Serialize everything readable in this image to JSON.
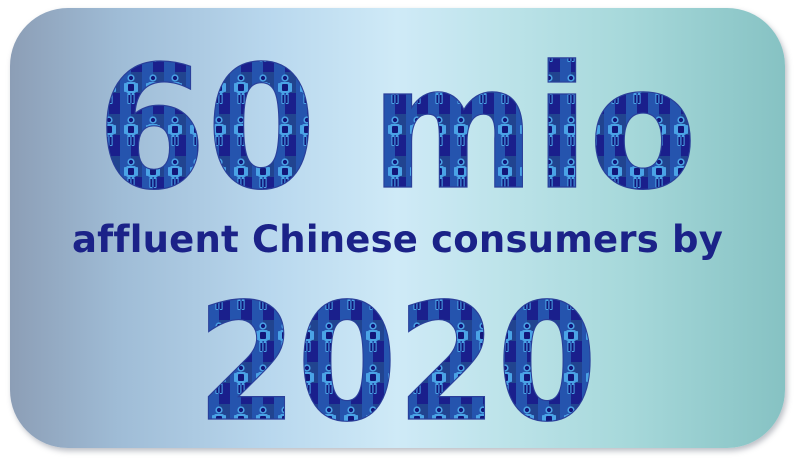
{
  "headline": {
    "amount": "60 mio",
    "subtitle": "affluent Chinese consumers by",
    "year": "2020"
  },
  "colors": {
    "text_dark_blue": "#1b2288",
    "pattern_base": "#1a1f8c",
    "pattern_light_blue": "#3d8fd6",
    "pattern_teal": "#2f8a96",
    "card_gradient_left": "#8c9eb6",
    "card_gradient_center": "#cfeaf7",
    "card_gradient_right": "#86c2c3"
  },
  "icons": {
    "fill_pattern": "person-silhouette-icon"
  }
}
